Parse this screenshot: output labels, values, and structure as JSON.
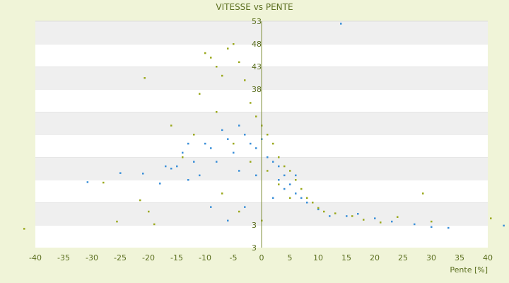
{
  "chart_data": {
    "type": "scatter",
    "title": "VITESSE vs PENTE",
    "xlabel": "Pente [%]",
    "ylabel": "",
    "xlim": [
      -40,
      40
    ],
    "ylim": [
      3,
      53
    ],
    "x_ticks": [
      -40,
      -35,
      -30,
      -25,
      -20,
      -15,
      -10,
      -5,
      0,
      5,
      10,
      15,
      20,
      25,
      30,
      35,
      40
    ],
    "y_ticks": [
      3,
      8,
      13,
      18,
      23,
      28,
      33,
      38,
      43,
      48,
      53
    ],
    "y_tick_labels_shown": [
      "53",
      "48",
      "43",
      "38",
      "3",
      "3"
    ],
    "grid": "horizontal alternating bands",
    "legend": "none",
    "colors": {
      "series_a": "#3a8fd8",
      "series_b": "#9aa81c"
    },
    "series": [
      {
        "values": [
          [
            -30.8,
            17.5
          ],
          [
            -25,
            19.5
          ],
          [
            -21,
            19.4
          ],
          [
            -18,
            17.2
          ],
          [
            -17,
            21
          ],
          [
            -16,
            20.5
          ],
          [
            -14,
            24
          ],
          [
            -13,
            26
          ],
          [
            -12,
            22
          ],
          [
            -11,
            19
          ],
          [
            -10,
            26
          ],
          [
            -9,
            25
          ],
          [
            -8,
            22
          ],
          [
            -7,
            29
          ],
          [
            -6,
            27
          ],
          [
            -5,
            24
          ],
          [
            -4,
            30
          ],
          [
            -3,
            28
          ],
          [
            -2,
            26
          ],
          [
            -1,
            25
          ],
          [
            0,
            27
          ],
          [
            1,
            23
          ],
          [
            2,
            22
          ],
          [
            3,
            21
          ],
          [
            4,
            19
          ],
          [
            5,
            17
          ],
          [
            6,
            15
          ],
          [
            7,
            14
          ],
          [
            8,
            13
          ],
          [
            10,
            11.5
          ],
          [
            12,
            10
          ],
          [
            14,
            52.5
          ],
          [
            15,
            10
          ],
          [
            17,
            10.5
          ],
          [
            20,
            9.5
          ],
          [
            23,
            8.8
          ],
          [
            27,
            8.2
          ],
          [
            30,
            7.6
          ],
          [
            33,
            7.4
          ],
          [
            42.8,
            7.9
          ],
          [
            -6,
            9
          ],
          [
            -3,
            12
          ],
          [
            2,
            14
          ],
          [
            4,
            16
          ],
          [
            -9,
            12
          ],
          [
            -15,
            21
          ],
          [
            -13,
            18
          ],
          [
            -4,
            20
          ],
          [
            -1,
            19
          ],
          [
            3,
            18
          ],
          [
            6,
            19
          ]
        ]
      },
      {
        "values": [
          [
            -42,
            7.2
          ],
          [
            -28,
            17.4
          ],
          [
            -21.5,
            13.5
          ],
          [
            -20,
            11
          ],
          [
            -19,
            8.2
          ],
          [
            -16,
            30
          ],
          [
            -14,
            23
          ],
          [
            -12,
            28
          ],
          [
            -10,
            46
          ],
          [
            -9,
            45
          ],
          [
            -8,
            43
          ],
          [
            -7,
            41
          ],
          [
            -6,
            47
          ],
          [
            -5,
            48
          ],
          [
            -4,
            44
          ],
          [
            -3,
            40
          ],
          [
            -2,
            35
          ],
          [
            -1,
            32
          ],
          [
            0,
            30
          ],
          [
            1,
            28
          ],
          [
            2,
            26
          ],
          [
            3,
            23
          ],
          [
            4,
            21
          ],
          [
            5,
            20
          ],
          [
            6,
            18
          ],
          [
            7,
            16
          ],
          [
            8,
            14
          ],
          [
            9,
            13
          ],
          [
            10,
            11.8
          ],
          [
            11,
            11
          ],
          [
            13,
            10.6
          ],
          [
            16,
            10
          ],
          [
            18,
            9.2
          ],
          [
            21,
            8.6
          ],
          [
            24,
            9.8
          ],
          [
            28.5,
            15
          ],
          [
            30,
            8.8
          ],
          [
            40.5,
            9.5
          ],
          [
            -25.6,
            8.8
          ],
          [
            -20.7,
            40.5
          ],
          [
            -11,
            37
          ],
          [
            -8,
            33
          ],
          [
            -5,
            26
          ],
          [
            -2,
            22
          ],
          [
            1,
            20
          ],
          [
            3,
            17
          ],
          [
            5,
            14
          ],
          [
            -7,
            15
          ],
          [
            -4,
            11
          ],
          [
            0,
            9
          ]
        ]
      }
    ]
  }
}
